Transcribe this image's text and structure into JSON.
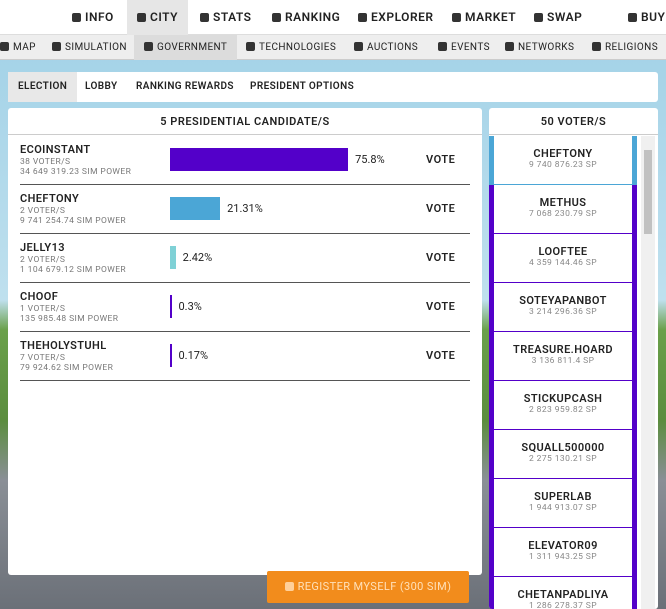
{
  "top_nav": [
    "INFO",
    "CITY",
    "STATS",
    "RANKING",
    "EXPLORER",
    "MARKET",
    "SWAP",
    "BUY"
  ],
  "sub_nav": [
    "MAP",
    "SIMULATION",
    "GOVERNMENT",
    "TECHNOLOGIES",
    "AUCTIONS",
    "EVENTS",
    "NETWORKS",
    "RELIGIONS"
  ],
  "tabs": [
    "ELECTION",
    "LOBBY",
    "RANKING REWARDS",
    "PRESIDENT OPTIONS"
  ],
  "candidates_panel": {
    "title": "5 PRESIDENTIAL CANDIDATE/S",
    "candidates": [
      {
        "name": "ECOINSTANT",
        "voters": "38 VOTER/S",
        "power": "34 649 319.23 SIM POWER",
        "share": 75.8,
        "share_label": "75.8%",
        "color": "#5300c9",
        "action": "VOTE"
      },
      {
        "name": "CHEFTONY",
        "voters": "2 VOTER/S",
        "power": "9 741 254.74 SIM POWER",
        "share": 21.31,
        "share_label": "21.31%",
        "color": "#4ba6d6",
        "action": "VOTE"
      },
      {
        "name": "JELLY13",
        "voters": "2 VOTER/S",
        "power": "1 104 679.12 SIM POWER",
        "share": 2.42,
        "share_label": "2.42%",
        "color": "#7fd1d6",
        "action": "VOTE"
      },
      {
        "name": "CHOOF",
        "voters": "1 VOTER/S",
        "power": "135 985.48 SIM POWER",
        "share": 0.3,
        "share_label": "0.3%",
        "color": "#5300c9",
        "action": "VOTE"
      },
      {
        "name": "THEHOLYSTUHL",
        "voters": "7 VOTER/S",
        "power": "79 924.62 SIM POWER",
        "share": 0.17,
        "share_label": "0.17%",
        "color": "#5300c9",
        "action": "VOTE"
      }
    ]
  },
  "voters_panel": {
    "title": "50 VOTER/S",
    "voters": [
      {
        "name": "CHEFTONY",
        "power": "9 740 876.23 SP",
        "color": "#4ba6d6"
      },
      {
        "name": "METHUS",
        "power": "7 068 230.79 SP",
        "color": "#5300c9"
      },
      {
        "name": "LOOFTEE",
        "power": "4 359 144.46 SP",
        "color": "#5300c9"
      },
      {
        "name": "SOTEYAPANBOT",
        "power": "3 214 296.36 SP",
        "color": "#5300c9"
      },
      {
        "name": "TREASURE.HOARD",
        "power": "3 136 811.4 SP",
        "color": "#5300c9"
      },
      {
        "name": "STICKUPCASH",
        "power": "2 823 959.82 SP",
        "color": "#5300c9"
      },
      {
        "name": "SQUALL500000",
        "power": "2 275 130.21 SP",
        "color": "#5300c9"
      },
      {
        "name": "SUPERLAB",
        "power": "1 944 913.07 SP",
        "color": "#5300c9"
      },
      {
        "name": "ELEVATOR09",
        "power": "1 311 943.25 SP",
        "color": "#5300c9"
      },
      {
        "name": "CHETANPADLIYA",
        "power": "1 286 278.37 SP",
        "color": "#5300c9"
      }
    ]
  },
  "register_button": "REGISTER MYSELF (300 SIM)"
}
